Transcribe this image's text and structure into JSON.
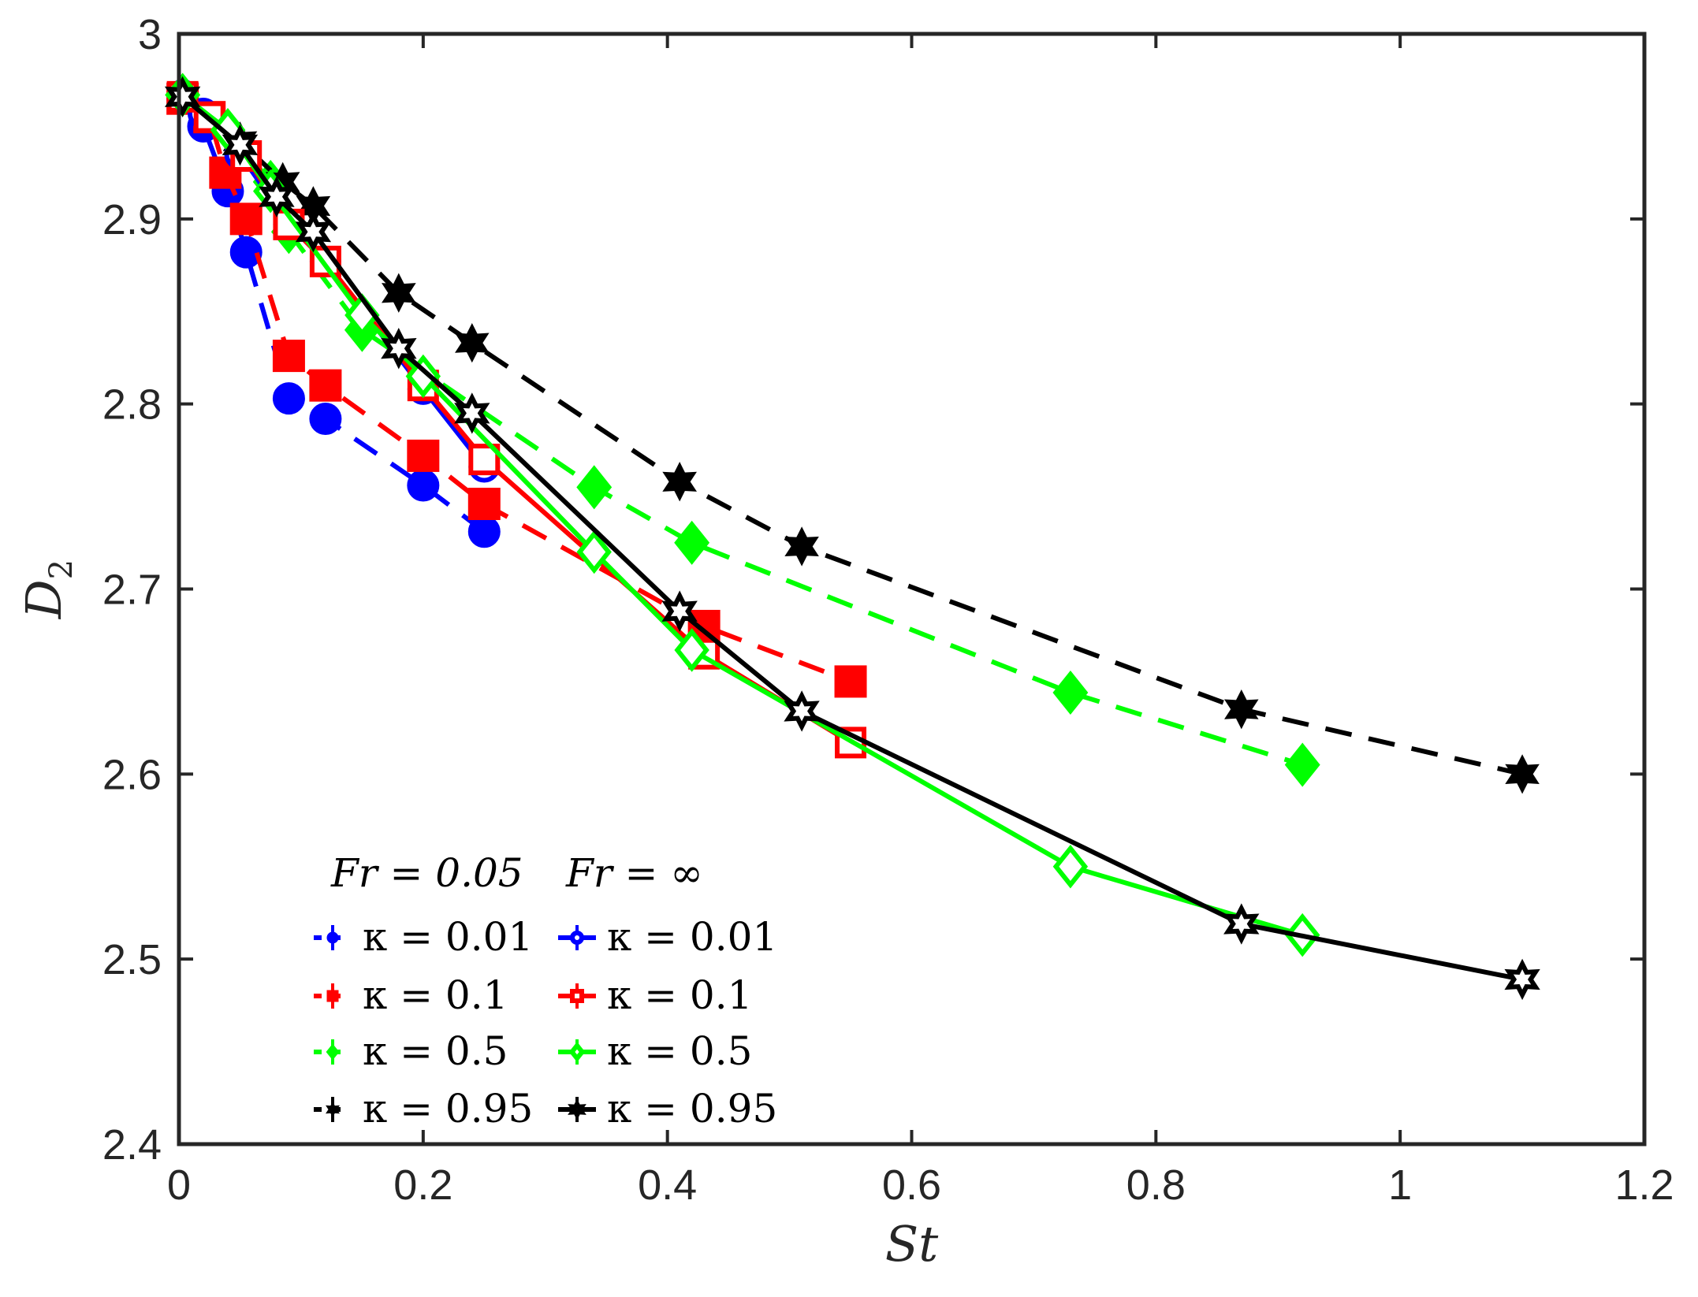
{
  "chart_data": {
    "type": "line",
    "title": "",
    "xlabel": "St",
    "ylabel": "D_2",
    "xlim": [
      0,
      1.2
    ],
    "ylim": [
      2.4,
      3.0
    ],
    "xticks": [
      0,
      0.2,
      0.4,
      0.6,
      0.8,
      1.0,
      1.2
    ],
    "xtick_labels": [
      "0",
      "0.2",
      "0.4",
      "0.6",
      "0.8",
      "1",
      "1.2"
    ],
    "yticks": [
      2.4,
      2.5,
      2.6,
      2.7,
      2.8,
      2.9,
      3.0
    ],
    "ytick_labels": [
      "2.4",
      "2.5",
      "2.6",
      "2.7",
      "2.8",
      "2.9",
      "3"
    ],
    "grid": false,
    "legend": {
      "placement": "bottom-left",
      "column_headers": [
        "Fr = 0.05",
        "Fr = ∞"
      ],
      "entries": [
        [
          "κ = 0.01",
          "κ = 0.01"
        ],
        [
          "κ = 0.1",
          "κ = 0.1"
        ],
        [
          "κ = 0.5",
          "κ = 0.5"
        ],
        [
          "κ = 0.95",
          "κ = 0.95"
        ]
      ]
    },
    "series": [
      {
        "name": "Fr=0.05, κ=0.01",
        "color": "#0000ff",
        "line": "dashed",
        "marker": "circle",
        "filled": true,
        "x": [
          0.003,
          0.02,
          0.04,
          0.055,
          0.09,
          0.12,
          0.2,
          0.25
        ],
        "y": [
          2.965,
          2.95,
          2.915,
          2.882,
          2.803,
          2.792,
          2.756,
          2.731
        ]
      },
      {
        "name": "Fr=0.05, κ=0.1",
        "color": "#ff0000",
        "line": "dashed",
        "marker": "square",
        "filled": true,
        "x": [
          0.003,
          0.025,
          0.038,
          0.055,
          0.09,
          0.12,
          0.2,
          0.25,
          0.43,
          0.55
        ],
        "y": [
          2.965,
          2.955,
          2.925,
          2.9,
          2.826,
          2.81,
          2.772,
          2.746,
          2.68,
          2.65
        ]
      },
      {
        "name": "Fr=0.05, κ=0.5",
        "color": "#00ff00",
        "line": "dashed",
        "marker": "diamond",
        "filled": true,
        "x": [
          0.003,
          0.04,
          0.075,
          0.09,
          0.15,
          0.34,
          0.42,
          0.73,
          0.92
        ],
        "y": [
          2.967,
          2.948,
          2.92,
          2.893,
          2.84,
          2.755,
          2.725,
          2.644,
          2.605
        ]
      },
      {
        "name": "Fr=0.05, κ=0.95",
        "color": "#000000",
        "line": "dashed",
        "marker": "hexagram",
        "filled": true,
        "x": [
          0.003,
          0.05,
          0.085,
          0.11,
          0.18,
          0.24,
          0.41,
          0.51,
          0.87,
          1.1
        ],
        "y": [
          2.966,
          2.942,
          2.92,
          2.907,
          2.86,
          2.833,
          2.758,
          2.723,
          2.635,
          2.6
        ]
      },
      {
        "name": "Fr=∞, κ=0.01",
        "color": "#0000ff",
        "line": "solid",
        "marker": "circle",
        "filled": false,
        "x": [
          0.003,
          0.02,
          0.05,
          0.09,
          0.12,
          0.2,
          0.25
        ],
        "y": [
          2.967,
          2.957,
          2.935,
          2.897,
          2.877,
          2.808,
          2.766
        ]
      },
      {
        "name": "Fr=∞, κ=0.1",
        "color": "#ff0000",
        "line": "solid",
        "marker": "square",
        "filled": false,
        "x": [
          0.003,
          0.025,
          0.055,
          0.09,
          0.12,
          0.2,
          0.25,
          0.43,
          0.55
        ],
        "y": [
          2.966,
          2.955,
          2.934,
          2.897,
          2.877,
          2.81,
          2.77,
          2.665,
          2.617
        ]
      },
      {
        "name": "Fr=∞, κ=0.5",
        "color": "#00ff00",
        "line": "solid",
        "marker": "diamond",
        "filled": false,
        "x": [
          0.003,
          0.04,
          0.075,
          0.15,
          0.2,
          0.34,
          0.42,
          0.73,
          0.92
        ],
        "y": [
          2.967,
          2.948,
          2.915,
          2.848,
          2.815,
          2.72,
          2.667,
          2.55,
          2.513
        ]
      },
      {
        "name": "Fr=∞, κ=0.95",
        "color": "#000000",
        "line": "solid",
        "marker": "hexagram",
        "filled": false,
        "x": [
          0.003,
          0.05,
          0.08,
          0.11,
          0.18,
          0.24,
          0.41,
          0.51,
          0.87,
          1.1
        ],
        "y": [
          2.966,
          2.94,
          2.912,
          2.893,
          2.83,
          2.795,
          2.688,
          2.634,
          2.519,
          2.489
        ]
      }
    ]
  }
}
